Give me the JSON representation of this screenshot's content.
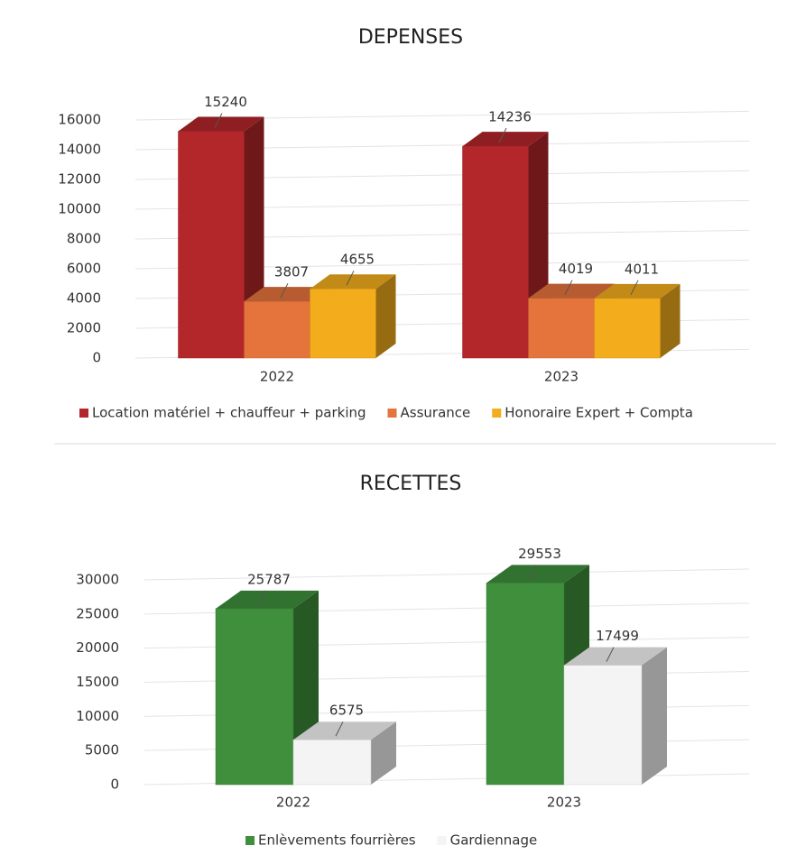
{
  "chart_data": [
    {
      "type": "bar",
      "title": "DEPENSES",
      "categories": [
        "2022",
        "2023"
      ],
      "series": [
        {
          "name": "Location matériel + chauffeur + parking",
          "color": "#b3262a",
          "values": [
            15240,
            14236
          ]
        },
        {
          "name": "Assurance",
          "color": "#e4733c",
          "values": [
            3807,
            4019
          ]
        },
        {
          "name": "Honoraire Expert + Compta",
          "color": "#f2ac1c",
          "values": [
            4655,
            4011
          ]
        }
      ],
      "ylim": [
        0,
        16000
      ],
      "yticks": [
        0,
        2000,
        4000,
        6000,
        8000,
        10000,
        12000,
        14000,
        16000
      ],
      "grid": true,
      "legend": "bottom"
    },
    {
      "type": "bar",
      "title": "RECETTES",
      "categories": [
        "2022",
        "2023"
      ],
      "series": [
        {
          "name": "Enlèvements fourrières",
          "color": "#3f8f3c",
          "values": [
            25787,
            29553
          ]
        },
        {
          "name": "Gardiennage",
          "color": "#f4f4f4",
          "values": [
            6575,
            17499
          ]
        }
      ],
      "ylim": [
        0,
        30000
      ],
      "yticks": [
        0,
        5000,
        10000,
        15000,
        20000,
        25000,
        30000
      ],
      "grid": true,
      "legend": "bottom"
    }
  ]
}
